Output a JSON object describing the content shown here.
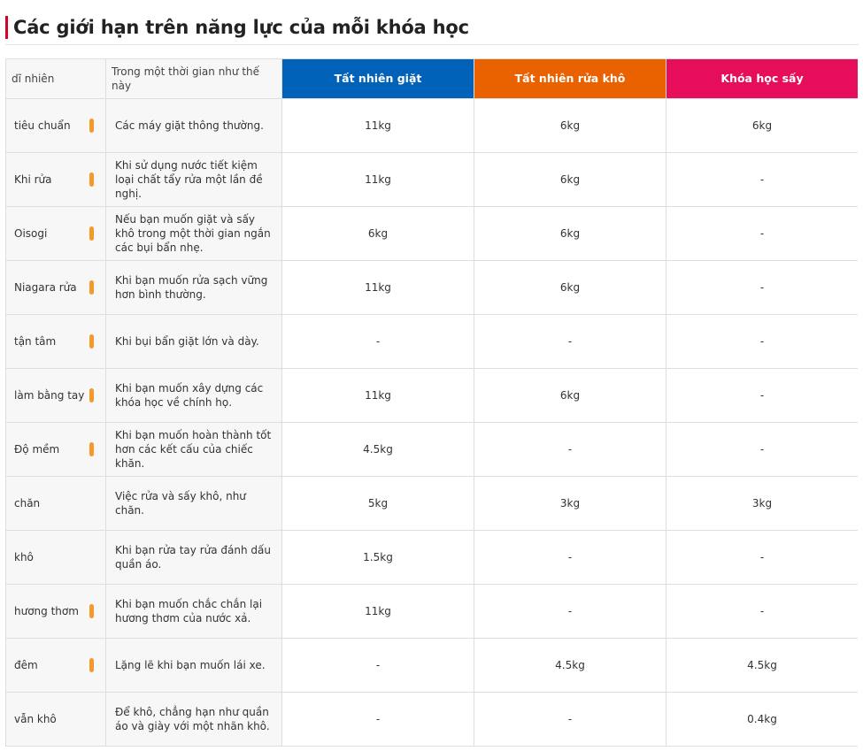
{
  "page": {
    "title": "Các giới hạn trên năng lực của mỗi khóa học"
  },
  "colors": {
    "title_accent": "#d6002f",
    "wash": "#0062b8",
    "dry": "#ea6100",
    "heat": "#e60d5b",
    "pill": "#f39a2a"
  },
  "table": {
    "headers": {
      "course": "dĩ nhiên",
      "when": "Trong một thời gian như thế này",
      "wash": "Tất nhiên giặt",
      "dry": "Tất nhiên rửa khô",
      "heat": "Khóa học sấy"
    },
    "rows": [
      {
        "course": "tiêu chuẩn",
        "pill": true,
        "when": "Các máy giặt thông thường.",
        "wash": "11kg",
        "dry": "6kg",
        "heat": "6kg"
      },
      {
        "course": "Khi rửa",
        "pill": true,
        "when": "Khi sử dụng nước tiết kiệm loại chất tẩy rửa một lần đề nghị.",
        "wash": "11kg",
        "dry": "6kg",
        "heat": "-"
      },
      {
        "course": "Oisogi",
        "pill": true,
        "when": "Nếu bạn muốn giặt và sấy khô trong một thời gian ngắn các bụi bẩn nhẹ.",
        "wash": "6kg",
        "dry": "6kg",
        "heat": "-"
      },
      {
        "course": "Niagara rửa",
        "pill": true,
        "when": "Khi bạn muốn rửa sạch vững hơn bình thường.",
        "wash": "11kg",
        "dry": "6kg",
        "heat": "-"
      },
      {
        "course": "tận tâm",
        "pill": true,
        "when": "Khi bụi bẩn giặt lớn và dày.",
        "wash": "-",
        "dry": "-",
        "heat": "-"
      },
      {
        "course": "làm bằng tay",
        "pill": true,
        "when": "Khi bạn muốn xây dựng các khóa học về chính họ.",
        "wash": "11kg",
        "dry": "6kg",
        "heat": "-"
      },
      {
        "course": "Độ mềm",
        "pill": true,
        "when": "Khi bạn muốn hoàn thành tốt hơn các kết cấu của chiếc khăn.",
        "wash": "4.5kg",
        "dry": "-",
        "heat": "-"
      },
      {
        "course": "chăn",
        "pill": false,
        "when": "Việc rửa và sấy khô, như chăn.",
        "wash": "5kg",
        "dry": "3kg",
        "heat": "3kg"
      },
      {
        "course": "khô",
        "pill": false,
        "when": "Khi bạn rửa tay rửa đánh dấu quần áo.",
        "wash": "1.5kg",
        "dry": "-",
        "heat": "-"
      },
      {
        "course": "hương thơm",
        "pill": true,
        "when": "Khi bạn muốn chắc chắn lại hương thơm của nước xả.",
        "wash": "11kg",
        "dry": "-",
        "heat": "-"
      },
      {
        "course": "đêm",
        "pill": true,
        "when": "Lặng lẽ khi bạn muốn lái xe.",
        "wash": "-",
        "dry": "4.5kg",
        "heat": "4.5kg"
      },
      {
        "course": "vẫn khô",
        "pill": false,
        "when": "Để khô, chẳng hạn như quần áo và giày với một nhãn khô.",
        "wash": "-",
        "dry": "-",
        "heat": "0.4kg"
      }
    ]
  }
}
